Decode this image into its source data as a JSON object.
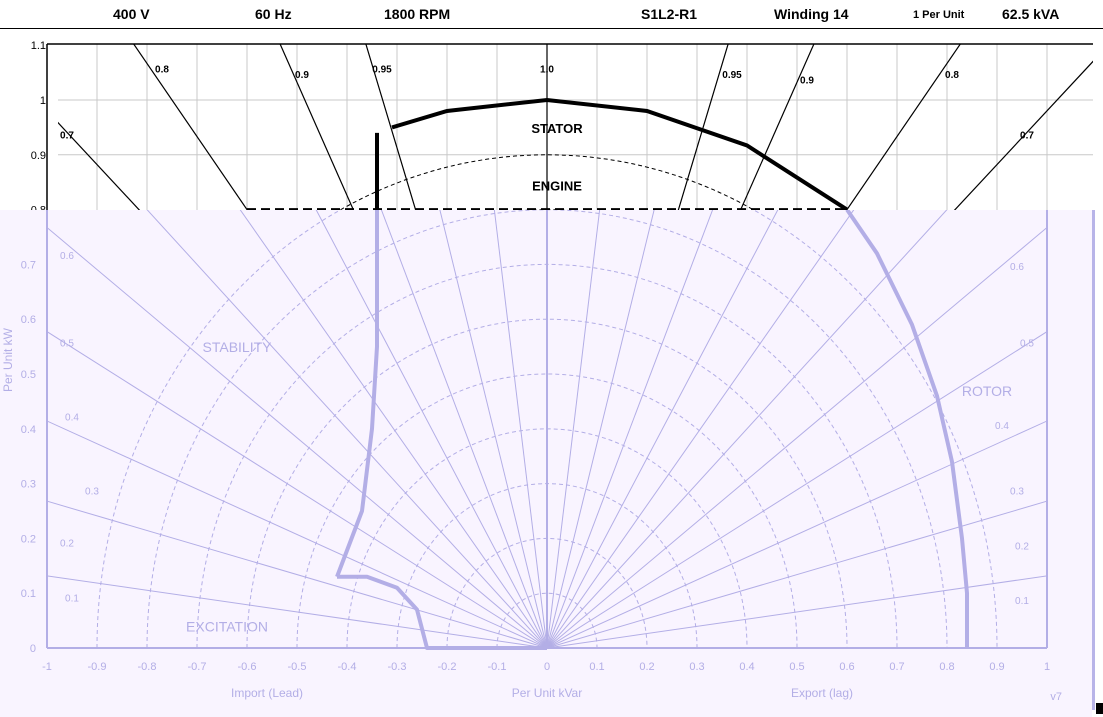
{
  "header": {
    "voltage": "400 V",
    "frequency": "60 Hz",
    "speed": "1800 RPM",
    "model": "S1L2-R1",
    "winding": "Winding 14",
    "per_unit": "1 Per Unit",
    "rating": "62.5 kVA"
  },
  "colors": {
    "upper_ink": "#000000",
    "lower_ink": "#b3aee6",
    "lower_bg": "#f9f4ff",
    "grid": "#c8c8c8"
  },
  "chart_data": {
    "type": "line",
    "title": "",
    "xlabel": "Per Unit kVar",
    "xlabel_left": "Import (Lead)",
    "xlabel_right": "Export (lag)",
    "ylabel": "Per Unit kW",
    "xlim": [
      -1,
      1
    ],
    "ylim": [
      0,
      1.1
    ],
    "x_ticks": [
      "-1",
      "-0.9",
      "-0.8",
      "-0.7",
      "-0.6",
      "-0.5",
      "-0.4",
      "-0.3",
      "-0.2",
      "-0.1",
      "0",
      "0.1",
      "0.2",
      "0.3",
      "0.4",
      "0.5",
      "0.6",
      "0.7",
      "0.8",
      "0.9",
      "1"
    ],
    "y_ticks_upper": [
      "1.1",
      "1",
      "0.9",
      "0.8"
    ],
    "y_ticks_lower": [
      "0.7",
      "0.6",
      "0.5",
      "0.4",
      "0.3",
      "0.2",
      "0.1",
      "0"
    ],
    "pf_labels_upper": [
      "0.7",
      "0.8",
      "0.9",
      "0.95",
      "1.0",
      "0.95",
      "0.9",
      "0.8",
      "0.7"
    ],
    "pf_labels_lower_left": [
      "0.6",
      "0.5",
      "0.4",
      "0.3",
      "0.2",
      "0.1"
    ],
    "pf_labels_lower_right": [
      "0.6",
      "0.5",
      "0.4",
      "0.3",
      "0.2",
      "0.1"
    ],
    "region_labels": {
      "stator": "STATOR",
      "engine": "ENGINE",
      "stability": "STABILITY",
      "rotor": "ROTOR",
      "excitation": "EXCITATION"
    },
    "version": "v7",
    "series": [
      {
        "name": "STATOR",
        "points": [
          [
            -0.31,
            0.95
          ],
          [
            -0.2,
            0.98
          ],
          [
            0,
            1.0
          ],
          [
            0.2,
            0.98
          ],
          [
            0.4,
            0.917
          ],
          [
            0.6,
            0.8
          ]
        ]
      },
      {
        "name": "ENGINE",
        "points": [
          [
            -0.6,
            0.8
          ],
          [
            0.6,
            0.8
          ]
        ]
      },
      {
        "name": "STABILITY",
        "points": [
          [
            -0.34,
            0.94
          ],
          [
            -0.34,
            0.8
          ],
          [
            -0.34,
            0.74
          ],
          [
            -0.34,
            0.55
          ],
          [
            -0.35,
            0.4
          ],
          [
            -0.37,
            0.25
          ],
          [
            -0.42,
            0.13
          ]
        ]
      },
      {
        "name": "EXCITATION",
        "points": [
          [
            -0.42,
            0.13
          ],
          [
            -0.36,
            0.13
          ],
          [
            -0.3,
            0.11
          ],
          [
            -0.26,
            0.07
          ],
          [
            -0.24,
            0.0
          ],
          [
            0,
            0
          ]
        ]
      },
      {
        "name": "ROTOR",
        "points": [
          [
            0.6,
            0.8
          ],
          [
            0.66,
            0.72
          ],
          [
            0.73,
            0.59
          ],
          [
            0.78,
            0.46
          ],
          [
            0.81,
            0.34
          ],
          [
            0.83,
            0.2
          ],
          [
            0.84,
            0.1
          ],
          [
            0.84,
            0.0
          ]
        ]
      }
    ],
    "pf_lines": [
      0.7,
      0.8,
      0.9,
      0.95,
      1.0
    ],
    "lower_pf_lines": [
      0.6,
      0.5,
      0.4,
      0.3,
      0.2,
      0.1
    ],
    "dashed_arcs_upper": [
      0.8,
      0.9
    ],
    "dashed_arcs_lower": [
      0.1,
      0.2,
      0.3,
      0.4,
      0.5,
      0.6,
      0.7,
      0.8,
      0.9
    ]
  }
}
